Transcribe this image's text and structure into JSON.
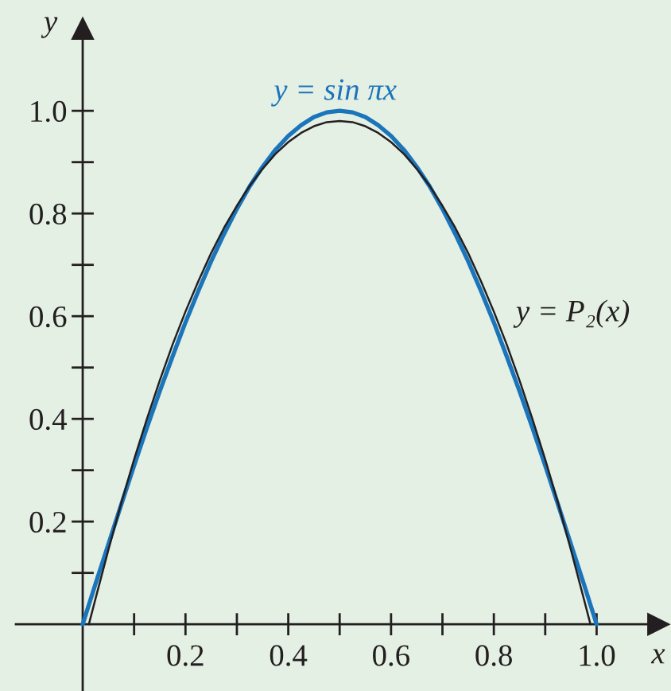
{
  "chart_data": {
    "type": "line",
    "xlabel": "x",
    "ylabel": "y",
    "xlim": [
      -0.13,
      1.12
    ],
    "ylim": [
      -0.13,
      1.16
    ],
    "xticks": [
      {
        "value": 0.1,
        "label": null
      },
      0.2,
      {
        "value": 0.3,
        "label": null
      },
      0.4,
      {
        "value": 0.5,
        "label": null
      },
      0.6,
      {
        "value": 0.7,
        "label": null
      },
      0.8,
      {
        "value": 0.9,
        "label": null
      },
      {
        "value": 1,
        "label": "1.0"
      }
    ],
    "yticks": [
      {
        "value": 0.1,
        "label": null
      },
      0.2,
      {
        "value": 0.3,
        "label": null
      },
      0.4,
      {
        "value": 0.5,
        "label": null
      },
      0.6,
      {
        "value": 0.7,
        "label": null
      },
      0.8,
      {
        "value": 0.9,
        "label": null
      },
      {
        "value": 1,
        "label": "1.0"
      }
    ],
    "series": [
      {
        "name": "y = sin πx",
        "color": "#1b75bb",
        "x": [
          0,
          0.025,
          0.05,
          0.075,
          0.1,
          0.125,
          0.15,
          0.175,
          0.2,
          0.225,
          0.25,
          0.275,
          0.3,
          0.325,
          0.35,
          0.375,
          0.4,
          0.425,
          0.45,
          0.475,
          0.5,
          0.525,
          0.55,
          0.575,
          0.6,
          0.625,
          0.65,
          0.675,
          0.7,
          0.725,
          0.75,
          0.775,
          0.8,
          0.825,
          0.85,
          0.875,
          0.9,
          0.925,
          0.95,
          0.975,
          1
        ],
        "values": [
          0,
          0.079,
          0.156,
          0.233,
          0.309,
          0.383,
          0.454,
          0.522,
          0.588,
          0.649,
          0.707,
          0.76,
          0.809,
          0.853,
          0.891,
          0.924,
          0.951,
          0.972,
          0.988,
          0.997,
          1.0,
          0.997,
          0.988,
          0.972,
          0.951,
          0.924,
          0.891,
          0.853,
          0.809,
          0.76,
          0.707,
          0.649,
          0.588,
          0.522,
          0.454,
          0.383,
          0.309,
          0.233,
          0.156,
          0.079,
          0
        ]
      },
      {
        "name": "y = P₂(x)",
        "color": "#231f20",
        "x": [
          0.012,
          0.025,
          0.05,
          0.075,
          0.1,
          0.125,
          0.15,
          0.175,
          0.2,
          0.225,
          0.25,
          0.275,
          0.3,
          0.325,
          0.35,
          0.375,
          0.4,
          0.425,
          0.45,
          0.475,
          0.5,
          0.525,
          0.55,
          0.575,
          0.6,
          0.625,
          0.65,
          0.675,
          0.7,
          0.725,
          0.75,
          0.775,
          0.8,
          0.825,
          0.85,
          0.875,
          0.9,
          0.925,
          0.95,
          0.975,
          0.988
        ],
        "values": [
          0,
          0.05,
          0.145,
          0.236,
          0.321,
          0.4,
          0.475,
          0.545,
          0.609,
          0.668,
          0.723,
          0.772,
          0.815,
          0.854,
          0.887,
          0.916,
          0.939,
          0.957,
          0.97,
          0.978,
          0.98,
          0.978,
          0.97,
          0.957,
          0.939,
          0.916,
          0.887,
          0.854,
          0.815,
          0.772,
          0.723,
          0.668,
          0.609,
          0.545,
          0.475,
          0.4,
          0.321,
          0.236,
          0.145,
          0.05,
          0
        ]
      }
    ]
  }
}
